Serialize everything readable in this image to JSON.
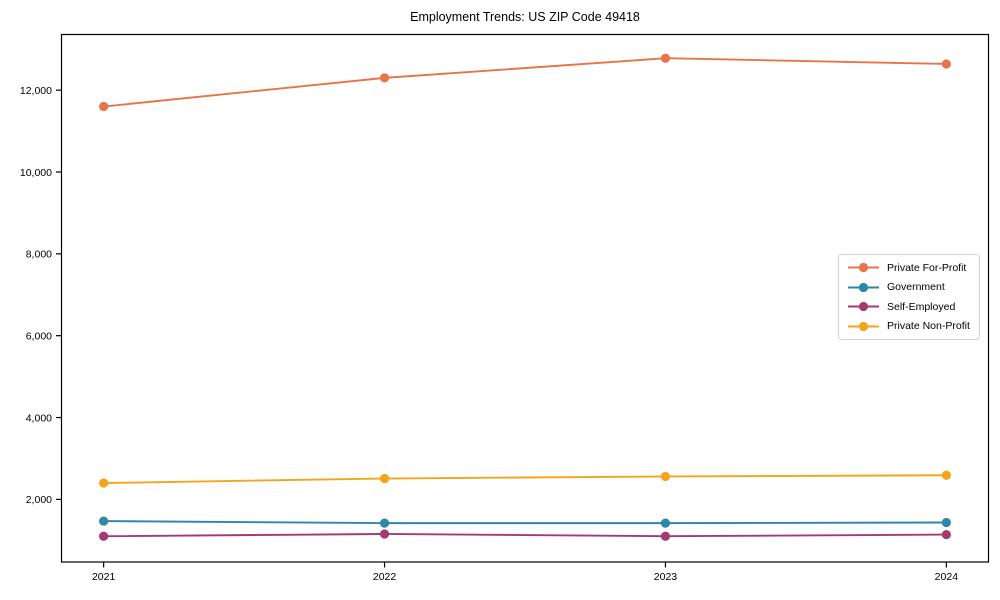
{
  "title": "Employment Trends: US ZIP Code 49418",
  "chart_data": {
    "type": "line",
    "title": "Employment Trends: US ZIP Code 49418",
    "xlabel": "",
    "ylabel": "",
    "x": [
      2021,
      2022,
      2023,
      2024
    ],
    "series": [
      {
        "name": "Private For-Profit",
        "color": "#E8744A",
        "values": [
          11600,
          12300,
          12780,
          12640
        ]
      },
      {
        "name": "Government",
        "color": "#2E86AB",
        "values": [
          1470,
          1420,
          1420,
          1435
        ]
      },
      {
        "name": "Self-Employed",
        "color": "#A23B72",
        "values": [
          1100,
          1155,
          1100,
          1140
        ]
      },
      {
        "name": "Private Non-Profit",
        "color": "#F4A418",
        "values": [
          2400,
          2510,
          2560,
          2590
        ]
      }
    ],
    "xticks": [
      2021,
      2022,
      2023,
      2024
    ],
    "yticks": [
      2000,
      4000,
      6000,
      8000,
      10000,
      12000
    ],
    "ytick_labels": [
      "2,000",
      "4,000",
      "6,000",
      "8,000",
      "10,000",
      "12,000"
    ],
    "xlim": [
      2020.85,
      2024.15
    ],
    "ylim": [
      470,
      13360
    ],
    "grid": false,
    "legend_position": "center right",
    "marker": "circle",
    "axis_color": "#000000",
    "background_color": "#ffffff"
  }
}
